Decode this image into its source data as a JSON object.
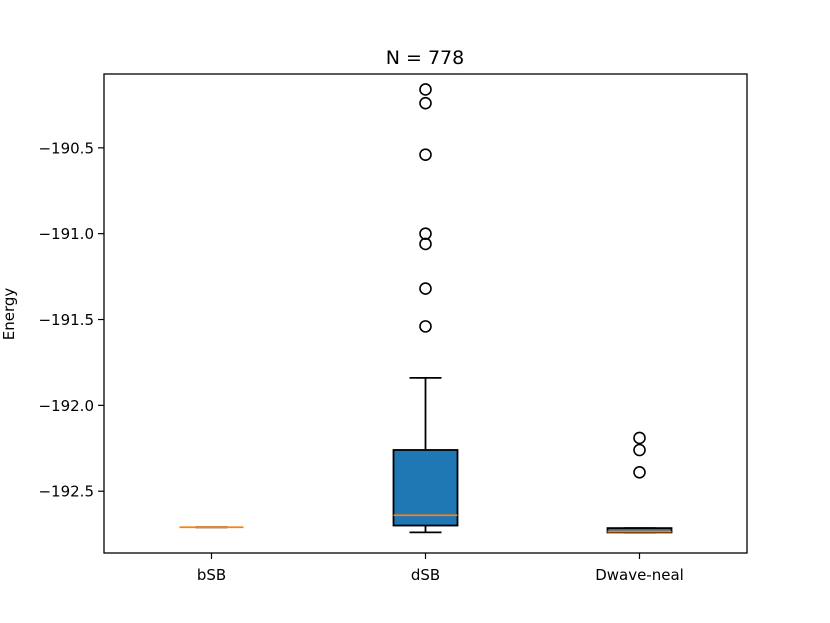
{
  "chart_data": {
    "type": "box",
    "title": "N = 778",
    "xlabel": "",
    "ylabel": "Energy",
    "ylim": [
      -192.86,
      -190.07
    ],
    "yticks": [
      -190.5,
      -191.0,
      -191.5,
      -192.0,
      -192.5
    ],
    "ytick_labels": [
      "−190.5",
      "−191.0",
      "−191.5",
      "−192.0",
      "−192.5"
    ],
    "categories": [
      "bSB",
      "dSB",
      "Dwave-neal"
    ],
    "boxes": [
      {
        "name": "bSB",
        "whislo": -192.71,
        "q1": -192.71,
        "med": -192.71,
        "q3": -192.71,
        "whishi": -192.71,
        "fliers": []
      },
      {
        "name": "dSB",
        "whislo": -192.74,
        "q1": -192.7,
        "med": -192.64,
        "q3": -192.26,
        "whishi": -191.84,
        "fliers": [
          -190.16,
          -190.24,
          -190.54,
          -191.0,
          -191.06,
          -191.32,
          -191.54
        ]
      },
      {
        "name": "Dwave-neal",
        "whislo": -192.74,
        "q1": -192.74,
        "med": -192.735,
        "q3": -192.715,
        "whishi": -192.715,
        "fliers": [
          -192.19,
          -192.26,
          -192.39
        ]
      }
    ],
    "colors": {
      "box_fill": "#1f77b4",
      "median": "#ff7f0e",
      "edge": "#000000"
    },
    "grid": false,
    "legend": "none"
  }
}
